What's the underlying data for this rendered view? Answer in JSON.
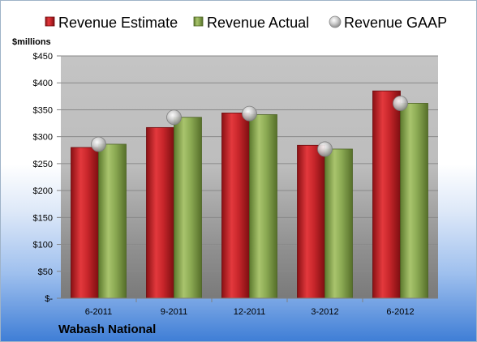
{
  "chart_data": {
    "type": "bar",
    "categories": [
      "6-2011",
      "9-2011",
      "12-2011",
      "3-2012",
      "6-2012"
    ],
    "series": [
      {
        "name": "Revenue Estimate",
        "values": [
          280,
          317,
          344,
          284,
          385
        ]
      },
      {
        "name": "Revenue Actual",
        "values": [
          286,
          336,
          341,
          277,
          362
        ]
      },
      {
        "name": "Revenue GAAP",
        "values": [
          286,
          336,
          343,
          277,
          362
        ]
      }
    ],
    "series_types": [
      "bar",
      "bar",
      "marker"
    ],
    "ylabel": "$millions",
    "ylim": [
      0,
      450
    ],
    "ytick_step": 50,
    "ytick_labels": [
      "$-",
      "$50",
      "$100",
      "$150",
      "$200",
      "$250",
      "$300",
      "$350",
      "$400",
      "$450"
    ],
    "grid": true,
    "legend_position": "top",
    "colors": {
      "estimate": "#c8262b",
      "actual": "#8cab54",
      "gaap": "#c8c8c8"
    }
  },
  "footer": {
    "company": "Wabash National"
  }
}
